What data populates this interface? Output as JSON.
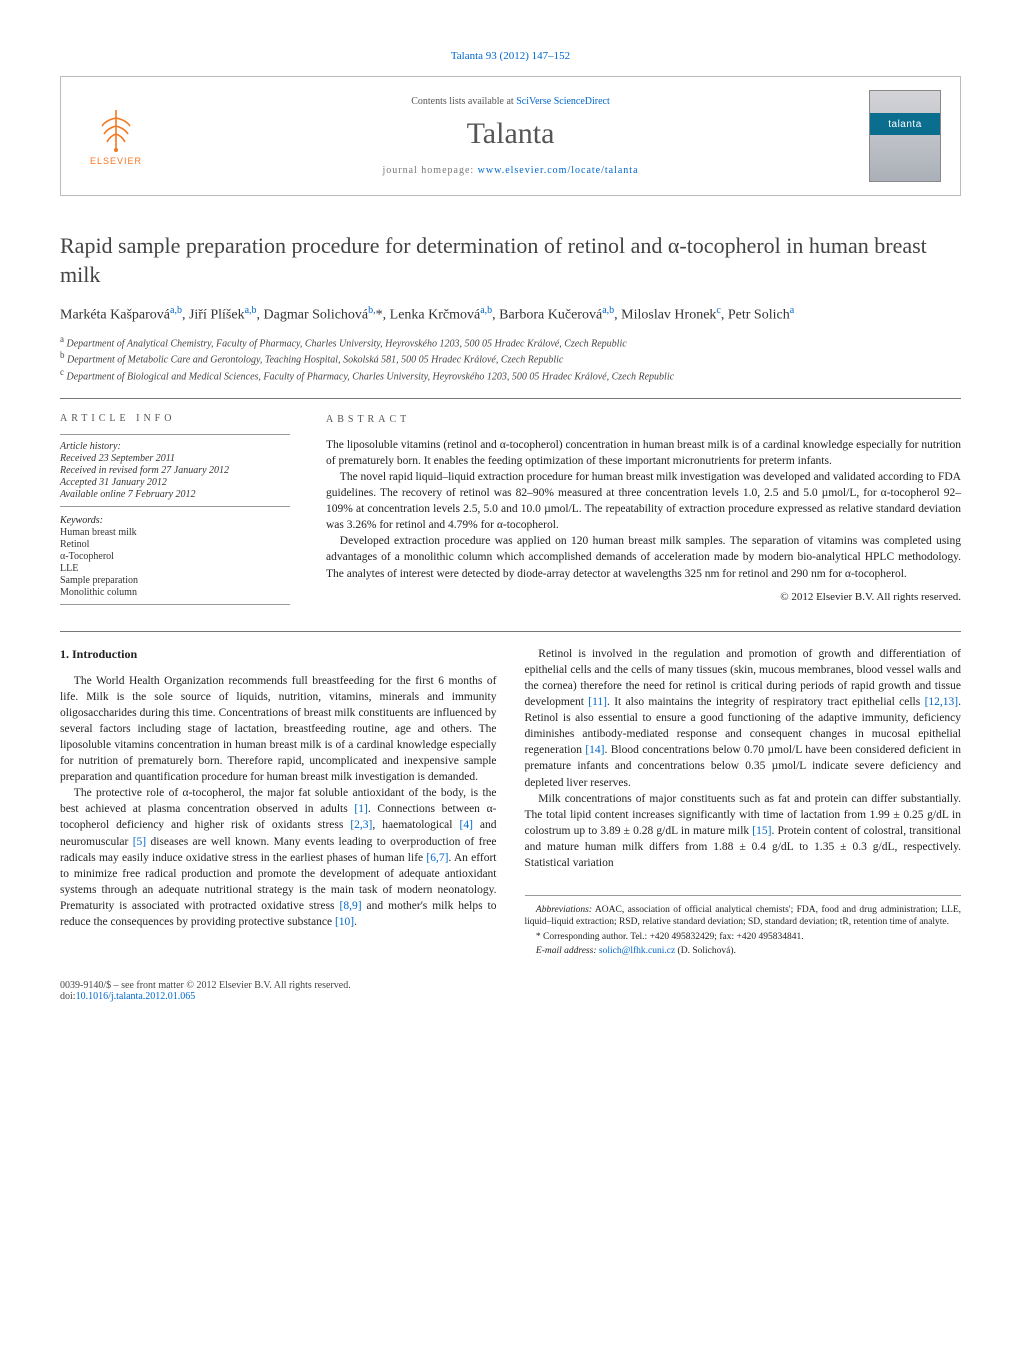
{
  "top_ref": "Talanta 93 (2012) 147–152",
  "header": {
    "contents_prefix": "Contents lists available at ",
    "contents_link": "SciVerse ScienceDirect",
    "journal": "Talanta",
    "homepage_prefix": "journal homepage: ",
    "homepage_url": "www.elsevier.com/locate/talanta",
    "elsevier_label": "ELSEVIER",
    "cover_label": "talanta"
  },
  "article": {
    "title": "Rapid sample preparation procedure for determination of retinol and α-tocopherol in human breast milk",
    "authors_html": "Markéta Kašparová<sup>a,b</sup>, Jiří Plíšek<sup>a,b</sup>, Dagmar Solichová<sup>b,</sup>*, Lenka Krčmová<sup>a,b</sup>, Barbora Kučerová<sup>a,b</sup>, Miloslav Hronek<sup>c</sup>, Petr Solich<sup>a</sup>",
    "affiliations": [
      "a Department of Analytical Chemistry, Faculty of Pharmacy, Charles University, Heyrovského 1203, 500 05 Hradec Králové, Czech Republic",
      "b Department of Metabolic Care and Gerontology, Teaching Hospital, Sokolská 581, 500 05 Hradec Králové, Czech Republic",
      "c Department of Biological and Medical Sciences, Faculty of Pharmacy, Charles University, Heyrovského 1203, 500 05 Hradec Králové, Czech Republic"
    ]
  },
  "info": {
    "heading": "ARTICLE INFO",
    "history_label": "Article history:",
    "history": [
      "Received 23 September 2011",
      "Received in revised form 27 January 2012",
      "Accepted 31 January 2012",
      "Available online 7 February 2012"
    ],
    "keywords_label": "Keywords:",
    "keywords": [
      "Human breast milk",
      "Retinol",
      "α-Tocopherol",
      "LLE",
      "Sample preparation",
      "Monolithic column"
    ]
  },
  "abstract": {
    "heading": "ABSTRACT",
    "paragraphs": [
      "The liposoluble vitamins (retinol and α-tocopherol) concentration in human breast milk is of a cardinal knowledge especially for nutrition of prematurely born. It enables the feeding optimization of these important micronutrients for preterm infants.",
      "The novel rapid liquid–liquid extraction procedure for human breast milk investigation was developed and validated according to FDA guidelines. The recovery of retinol was 82–90% measured at three concentration levels 1.0, 2.5 and 5.0 µmol/L, for α-tocopherol 92–109% at concentration levels 2.5, 5.0 and 10.0 µmol/L. The repeatability of extraction procedure expressed as relative standard deviation was 3.26% for retinol and 4.79% for α-tocopherol.",
      "Developed extraction procedure was applied on 120 human breast milk samples. The separation of vitamins was completed using advantages of a monolithic column which accomplished demands of acceleration made by modern bio-analytical HPLC methodology. The analytes of interest were detected by diode-array detector at wavelengths 325 nm for retinol and 290 nm for α-tocopherol."
    ],
    "copyright": "© 2012 Elsevier B.V. All rights reserved."
  },
  "section1": {
    "heading": "1. Introduction",
    "paragraphs": [
      "The World Health Organization recommends full breastfeeding for the first 6 months of life. Milk is the sole source of liquids, nutrition, vitamins, minerals and immunity oligosaccharides during this time. Concentrations of breast milk constituents are influenced by several factors including stage of lactation, breastfeeding routine, age and others. The liposoluble vitamins concentration in human breast milk is of a cardinal knowledge especially for nutrition of prematurely born. Therefore rapid, uncomplicated and inexpensive sample preparation and quantification procedure for human breast milk investigation is demanded.",
      "The protective role of α-tocopherol, the major fat soluble antioxidant of the body, is the best achieved at plasma concentration observed in adults [1]. Connections between α-tocopherol deficiency and higher risk of oxidants stress [2,3], haematological [4] and neuromuscular [5] diseases are well known. Many events leading to overproduction of free radicals may easily induce oxidative stress in the earliest phases of human life [6,7]. An effort to minimize free radical production and promote the development of adequate antioxidant systems through an adequate nutritional strategy is the main task of modern neonatology. Prematurity is associated with protracted oxidative stress [8,9] and mother's milk helps to reduce the consequences by providing protective substance [10].",
      "Retinol is involved in the regulation and promotion of growth and differentiation of epithelial cells and the cells of many tissues (skin, mucous membranes, blood vessel walls and the cornea) therefore the need for retinol is critical during periods of rapid growth and tissue development [11]. It also maintains the integrity of respiratory tract epithelial cells [12,13]. Retinol is also essential to ensure a good functioning of the adaptive immunity, deficiency diminishes antibody-mediated response and consequent changes in mucosal epithelial regeneration [14]. Blood concentrations below 0.70 µmol/L have been considered deficient in premature infants and concentrations below 0.35 µmol/L indicate severe deficiency and depleted liver reserves.",
      "Milk concentrations of major constituents such as fat and protein can differ substantially. The total lipid content increases significantly with time of lactation from 1.99 ± 0.25 g/dL in colostrum up to 3.89 ± 0.28 g/dL in mature milk [15]. Protein content of colostral, transitional and mature human milk differs from 1.88 ± 0.4 g/dL to 1.35 ± 0.3 g/dL, respectively. Statistical variation"
    ]
  },
  "footnotes": {
    "abbr_label": "Abbreviations:",
    "abbr_text": " AOAC, association of official analytical chemists'; FDA, food and drug administration; LLE, liquid–liquid extraction; RSD, relative standard deviation; SD, standard deviation; tR, retention time of analyte.",
    "corr_label": "* Corresponding author. ",
    "corr_text": "Tel.: +420 495832429; fax: +420 495834841.",
    "email_label": "E-mail address: ",
    "email": "solich@lfhk.cuni.cz",
    "email_suffix": " (D. Solichová)."
  },
  "bottom": {
    "issn_line": "0039-9140/$ – see front matter © 2012 Elsevier B.V. All rights reserved.",
    "doi_prefix": "doi:",
    "doi": "10.1016/j.talanta.2012.01.065"
  },
  "colors": {
    "link": "#0066cc",
    "elsevier_orange": "#f47721",
    "cover_teal": "#0b6e8f",
    "rule": "#777777"
  }
}
